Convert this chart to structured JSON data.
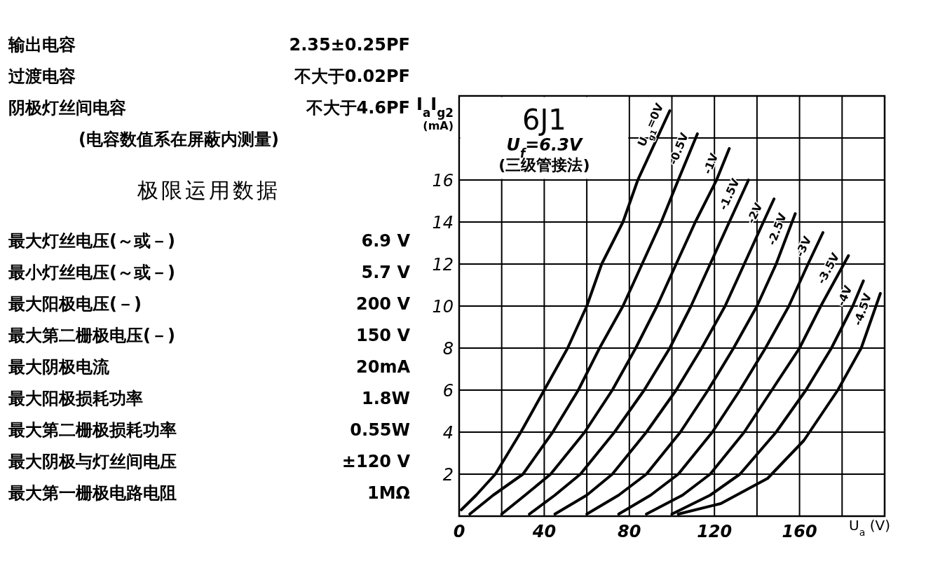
{
  "chart_data": [
    {
      "type": "other",
      "categories": [
        "输出电容",
        "过渡电容",
        "阴极灯丝间电容"
      ],
      "value_labels": [
        "2.35±0.25PF",
        "不大于0.02PF",
        "不大于4.6PF"
      ],
      "annotations": [
        "(电容数值系在屏蔽内测量)"
      ]
    },
    {
      "type": "other",
      "title": "极限运用数据",
      "categories": [
        "最大灯丝电压(～或－)",
        "最小灯丝电压(～或－)",
        "最大阳极电压(－)",
        "最大第二栅极电压(－)",
        "最大阴极电流",
        "最大阳极损耗功率",
        "最大第二栅极损耗功率",
        "最大阴极与灯丝间电压",
        "最大第一栅极电路电阻"
      ],
      "value_labels": [
        "6.9 V",
        "5.7 V",
        "200 V",
        "150 V",
        "20mA",
        "1.8W",
        "0.55W",
        "±120 V",
        "1MΩ"
      ]
    },
    {
      "type": "line",
      "title": "6J1",
      "subtitle": "U$_{f}$=6.3V",
      "annotations": [
        "(三级管接法)"
      ],
      "xlabel": "U$_{a}$ (V)",
      "ylabel": "I$_{a}$I$_{g2}$ (mA)",
      "xlim": [
        0,
        200
      ],
      "ylim": [
        0,
        20
      ],
      "xticks": [
        0,
        {
          "value": 20,
          "label": null
        },
        40,
        {
          "value": 60,
          "label": null
        },
        80,
        {
          "value": 100,
          "label": null
        },
        120,
        {
          "value": 140,
          "label": null
        },
        160,
        {
          "value": 180,
          "label": null
        }
      ],
      "yticks": [
        2,
        4,
        6,
        8,
        10,
        12,
        14,
        16,
        {
          "value": 18,
          "label": null
        }
      ],
      "grid": true,
      "marker": "none",
      "line_style": "solid",
      "series": [
        {
          "name": "U$_{g1}$=0V",
          "color": "#000000",
          "x": [
            1,
            8,
            17,
            29,
            40,
            51,
            60,
            67,
            77,
            84,
            99
          ],
          "values": [
            0.3,
            1,
            2,
            4,
            6,
            8,
            10,
            12,
            14,
            16,
            19.3
          ]
        },
        {
          "name": "-0.5V",
          "color": "#000000",
          "x": [
            5,
            16,
            30,
            44,
            56,
            66,
            77,
            86,
            95,
            103,
            112
          ],
          "values": [
            0.1,
            1,
            2,
            4,
            6,
            8,
            10,
            12,
            14,
            16,
            18.2
          ]
        },
        {
          "name": "-1V",
          "color": "#000000",
          "x": [
            20,
            31,
            43,
            59,
            72,
            83,
            93,
            102,
            111,
            121,
            127
          ],
          "values": [
            0.1,
            1,
            2,
            4,
            6,
            8,
            10,
            12,
            14,
            16,
            17.5
          ]
        },
        {
          "name": "-1.5V",
          "color": "#000000",
          "x": [
            33,
            45,
            57,
            73,
            87,
            99,
            109,
            118,
            127,
            136
          ],
          "values": [
            0.1,
            1,
            2,
            4,
            6,
            8,
            10,
            12,
            14,
            16
          ]
        },
        {
          "name": "-2V",
          "color": "#000000",
          "x": [
            45,
            60,
            72,
            88,
            102,
            114,
            125,
            134,
            143,
            148
          ],
          "values": [
            0.1,
            1,
            2,
            4,
            6,
            8,
            10,
            12,
            14,
            15.1
          ]
        },
        {
          "name": "-2.5V",
          "color": "#000000",
          "x": [
            60,
            75,
            88,
            104,
            117,
            129,
            140,
            149,
            158
          ],
          "values": [
            0.1,
            1,
            2,
            4,
            6,
            8,
            10,
            12,
            14.4
          ]
        },
        {
          "name": "-3V",
          "color": "#000000",
          "x": [
            75,
            90,
            103,
            119,
            132,
            144,
            155,
            164,
            171
          ],
          "values": [
            0.1,
            1,
            2,
            4,
            6,
            8,
            10,
            12,
            13.5
          ]
        },
        {
          "name": "-3.5V",
          "color": "#000000",
          "x": [
            88,
            105,
            118,
            134,
            147,
            160,
            170,
            183
          ],
          "values": [
            0.1,
            1,
            2,
            4,
            6,
            8,
            10,
            12.4
          ]
        },
        {
          "name": "-4V",
          "color": "#000000",
          "x": [
            100,
            118,
            132,
            149,
            163,
            175,
            185,
            190
          ],
          "values": [
            0.1,
            1,
            2,
            4,
            6,
            8,
            10,
            11.2
          ]
        },
        {
          "name": "-4.5V",
          "color": "#000000",
          "x": [
            103,
            123,
            145,
            162,
            178,
            189,
            198
          ],
          "values": [
            0.1,
            0.6,
            1.8,
            3.6,
            6,
            8,
            10.6
          ]
        }
      ]
    }
  ]
}
